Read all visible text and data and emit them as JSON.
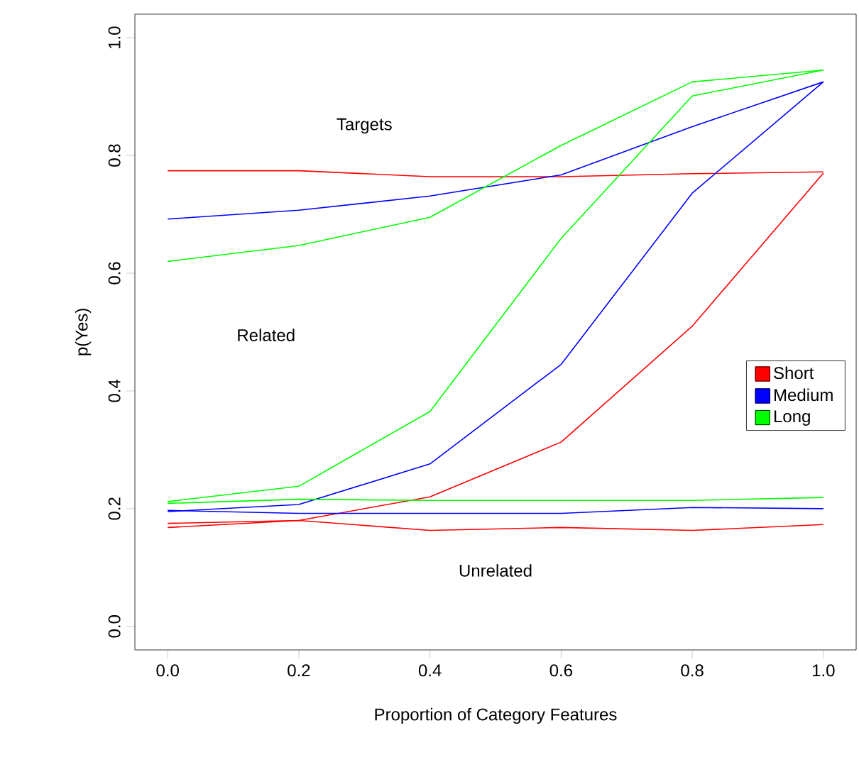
{
  "chart_data": {
    "type": "line",
    "xlabel": "Proportion of Category Features",
    "ylabel": "p(Yes)",
    "x": [
      0.0,
      0.2,
      0.4,
      0.6,
      0.8,
      1.0
    ],
    "series": [
      {
        "name": "Short",
        "color": "#ff0000",
        "values": [
          0.774,
          0.774,
          0.764,
          0.764,
          0.769,
          0.772
        ]
      },
      {
        "name": "Medium",
        "color": "#0000ff",
        "values": [
          0.692,
          0.707,
          0.731,
          0.767,
          0.849,
          0.925
        ]
      },
      {
        "name": "Long",
        "color": "#00ff00",
        "values": [
          0.62,
          0.647,
          0.695,
          0.817,
          0.925,
          0.945
        ]
      },
      {
        "color": "#ff0000",
        "values": [
          0.175,
          0.18,
          0.22,
          0.313,
          0.51,
          0.77
        ]
      },
      {
        "color": "#0000ff",
        "values": [
          0.195,
          0.207,
          0.276,
          0.445,
          0.736,
          0.925
        ]
      },
      {
        "color": "#00ff00",
        "values": [
          0.212,
          0.238,
          0.365,
          0.659,
          0.901,
          0.945
        ]
      },
      {
        "color": "#ff0000",
        "values": [
          0.168,
          0.18,
          0.163,
          0.168,
          0.163,
          0.173
        ]
      },
      {
        "color": "#0000ff",
        "values": [
          0.197,
          0.192,
          0.192,
          0.192,
          0.202,
          0.2
        ]
      },
      {
        "color": "#00ff00",
        "values": [
          0.209,
          0.216,
          0.214,
          0.214,
          0.214,
          0.219
        ]
      }
    ],
    "annotations": [
      "Targets",
      "Related",
      "Unrelated"
    ],
    "xlim": [
      -0.05,
      1.05
    ],
    "ylim": [
      -0.04,
      1.04
    ],
    "xticks": [
      {
        "value": 0.0,
        "label": "0.0"
      },
      0.2,
      0.4,
      0.6,
      0.8,
      {
        "value": 1.0,
        "label": "1.0"
      }
    ],
    "yticks": [
      {
        "value": 0.0,
        "label": "0.0"
      },
      0.2,
      0.4,
      0.6,
      0.8,
      {
        "value": 1.0,
        "label": "1.0"
      }
    ],
    "legend": "right",
    "marker": "none",
    "line_style": "solid"
  }
}
